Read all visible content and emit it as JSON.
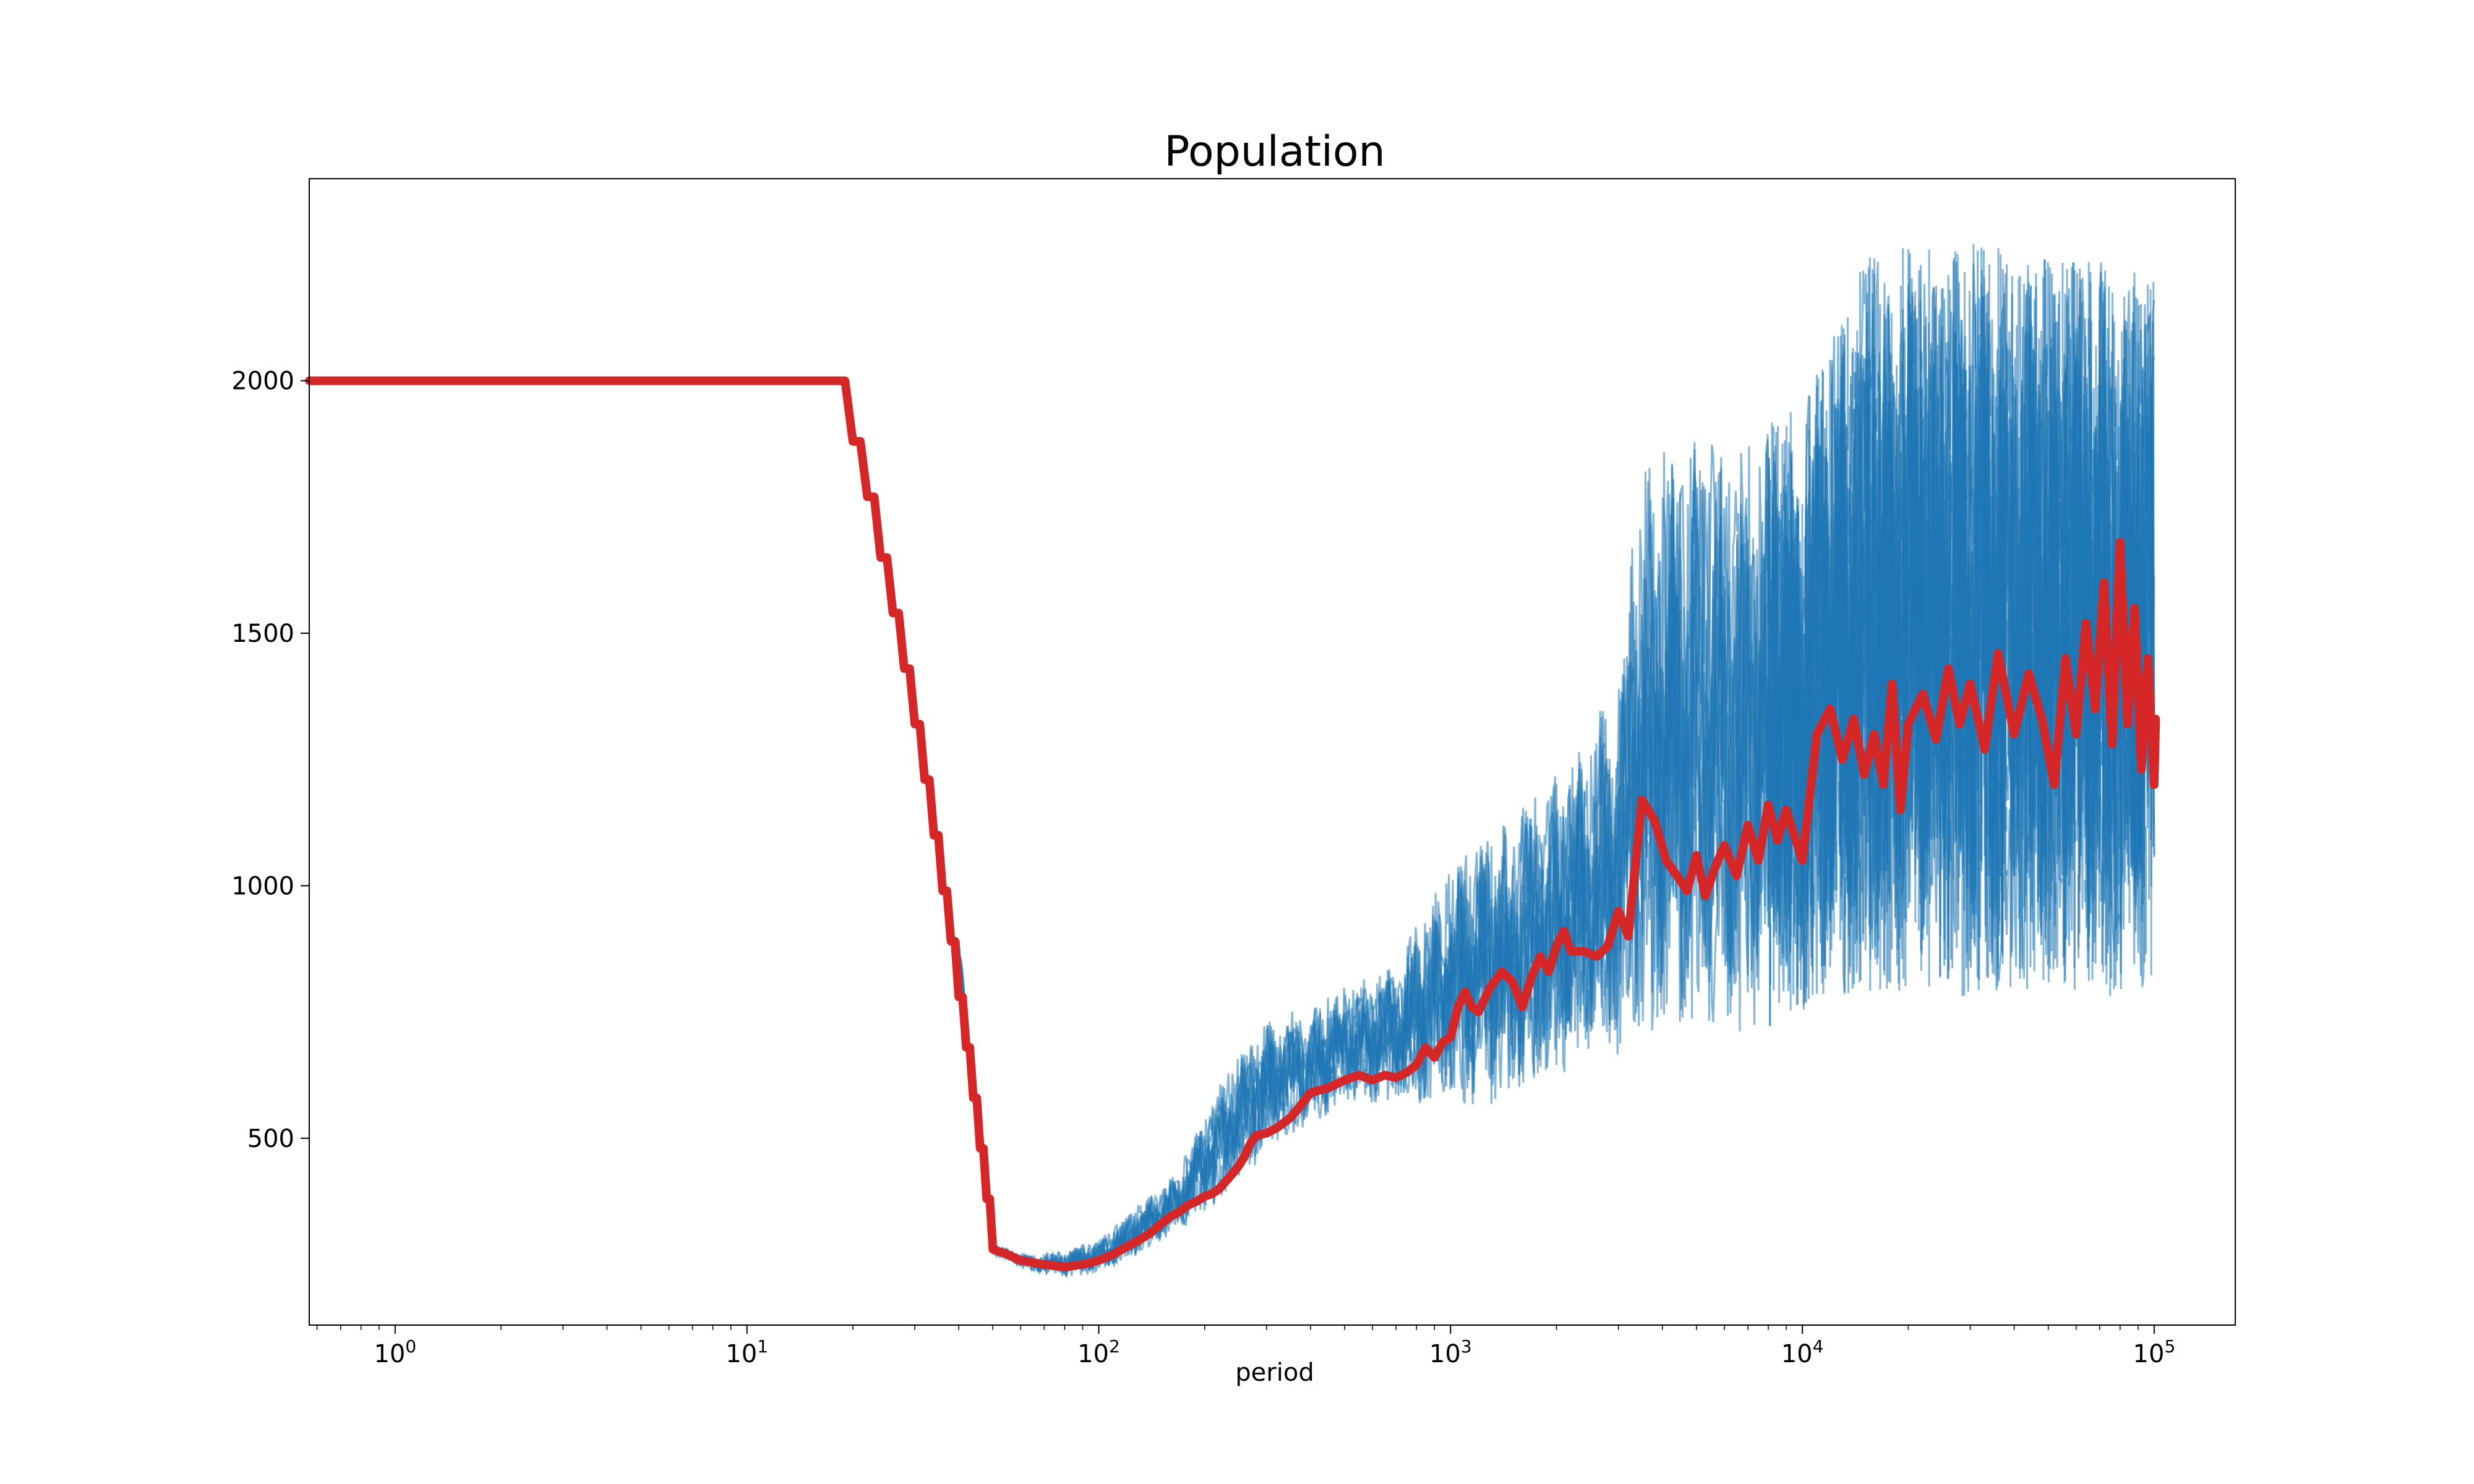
{
  "chart_data": {
    "type": "line",
    "title": "Population",
    "xlabel": "period",
    "ylabel": "",
    "xscale": "log",
    "xlim": [
      0.57,
      170000
    ],
    "ylim": [
      130,
      2400
    ],
    "grid": false,
    "legend": "none",
    "x_ticks": [
      {
        "value": 1,
        "base": "10",
        "exp": "0"
      },
      {
        "value": 10,
        "base": "10",
        "exp": "1"
      },
      {
        "value": 100,
        "base": "10",
        "exp": "2"
      },
      {
        "value": 1000,
        "base": "10",
        "exp": "3"
      },
      {
        "value": 10000,
        "base": "10",
        "exp": "4"
      },
      {
        "value": 100000,
        "base": "10",
        "exp": "5"
      }
    ],
    "y_ticks": [
      {
        "value": 500,
        "label": "500"
      },
      {
        "value": 1000,
        "label": "1000"
      },
      {
        "value": 1500,
        "label": "1500"
      },
      {
        "value": 2000,
        "label": "2000"
      }
    ],
    "colors": {
      "runs": "#1f77b4",
      "mean": "#d62728",
      "axes": "#000000"
    },
    "series": [
      {
        "role": "individual runs",
        "color": "#1f77b4",
        "envelope": {
          "x": [
            0.57,
            19,
            22,
            30,
            40,
            50,
            65,
            80,
            100,
            130,
            170,
            220,
            300,
            400,
            500,
            700,
            1000,
            1500,
            2000,
            3000,
            3500,
            5000,
            7000,
            10000,
            15000,
            20000,
            30000,
            50000,
            70000,
            100000
          ],
          "low": [
            2000,
            2000,
            1850,
            1300,
            830,
            270,
            235,
            225,
            230,
            270,
            320,
            370,
            470,
            530,
            560,
            570,
            560,
            560,
            620,
            660,
            680,
            690,
            700,
            750,
            780,
            790,
            780,
            800,
            780,
            780
          ],
          "high": [
            2000,
            2000,
            1900,
            1380,
            900,
            290,
            265,
            280,
            300,
            370,
            440,
            620,
            740,
            760,
            800,
            850,
            1050,
            1150,
            1230,
            1400,
            1870,
            1900,
            1900,
            1950,
            2250,
            2270,
            2280,
            2250,
            2250,
            2200
          ]
        }
      },
      {
        "role": "mean",
        "color": "#d62728",
        "points": [
          [
            0.57,
            2000
          ],
          [
            19,
            2000
          ],
          [
            20,
            1880
          ],
          [
            21,
            1880
          ],
          [
            22,
            1770
          ],
          [
            23,
            1770
          ],
          [
            24,
            1650
          ],
          [
            25,
            1650
          ],
          [
            26,
            1540
          ],
          [
            27,
            1540
          ],
          [
            28,
            1430
          ],
          [
            29,
            1430
          ],
          [
            30,
            1320
          ],
          [
            31,
            1320
          ],
          [
            32,
            1210
          ],
          [
            33,
            1210
          ],
          [
            34,
            1100
          ],
          [
            35,
            1100
          ],
          [
            36,
            990
          ],
          [
            37,
            990
          ],
          [
            38,
            890
          ],
          [
            39,
            890
          ],
          [
            40,
            780
          ],
          [
            41,
            780
          ],
          [
            42,
            680
          ],
          [
            43,
            680
          ],
          [
            44,
            580
          ],
          [
            45,
            580
          ],
          [
            46,
            480
          ],
          [
            47,
            480
          ],
          [
            48,
            380
          ],
          [
            49,
            380
          ],
          [
            50,
            280
          ],
          [
            55,
            270
          ],
          [
            60,
            258
          ],
          [
            70,
            250
          ],
          [
            80,
            245
          ],
          [
            90,
            250
          ],
          [
            100,
            258
          ],
          [
            110,
            270
          ],
          [
            120,
            285
          ],
          [
            130,
            298
          ],
          [
            140,
            312
          ],
          [
            150,
            330
          ],
          [
            160,
            345
          ],
          [
            170,
            355
          ],
          [
            180,
            368
          ],
          [
            190,
            375
          ],
          [
            200,
            385
          ],
          [
            210,
            390
          ],
          [
            220,
            400
          ],
          [
            230,
            415
          ],
          [
            240,
            430
          ],
          [
            250,
            445
          ],
          [
            260,
            465
          ],
          [
            270,
            490
          ],
          [
            280,
            505
          ],
          [
            300,
            510
          ],
          [
            320,
            520
          ],
          [
            350,
            540
          ],
          [
            380,
            570
          ],
          [
            400,
            590
          ],
          [
            450,
            600
          ],
          [
            500,
            615
          ],
          [
            550,
            625
          ],
          [
            600,
            615
          ],
          [
            650,
            625
          ],
          [
            700,
            620
          ],
          [
            750,
            630
          ],
          [
            800,
            645
          ],
          [
            850,
            680
          ],
          [
            900,
            660
          ],
          [
            950,
            690
          ],
          [
            1000,
            700
          ],
          [
            1050,
            760
          ],
          [
            1100,
            790
          ],
          [
            1150,
            760
          ],
          [
            1200,
            750
          ],
          [
            1300,
            800
          ],
          [
            1400,
            830
          ],
          [
            1500,
            810
          ],
          [
            1600,
            760
          ],
          [
            1700,
            820
          ],
          [
            1800,
            860
          ],
          [
            1900,
            830
          ],
          [
            2000,
            880
          ],
          [
            2100,
            910
          ],
          [
            2200,
            870
          ],
          [
            2400,
            870
          ],
          [
            2600,
            860
          ],
          [
            2800,
            880
          ],
          [
            3000,
            950
          ],
          [
            3200,
            900
          ],
          [
            3500,
            1170
          ],
          [
            3800,
            1130
          ],
          [
            4100,
            1050
          ],
          [
            4400,
            1020
          ],
          [
            4700,
            990
          ],
          [
            5000,
            1060
          ],
          [
            5300,
            980
          ],
          [
            5600,
            1030
          ],
          [
            6000,
            1080
          ],
          [
            6500,
            1020
          ],
          [
            7000,
            1120
          ],
          [
            7500,
            1050
          ],
          [
            8000,
            1160
          ],
          [
            8500,
            1090
          ],
          [
            9000,
            1150
          ],
          [
            10000,
            1050
          ],
          [
            11000,
            1300
          ],
          [
            12000,
            1350
          ],
          [
            13000,
            1250
          ],
          [
            14000,
            1330
          ],
          [
            15000,
            1220
          ],
          [
            16000,
            1300
          ],
          [
            17000,
            1200
          ],
          [
            18000,
            1400
          ],
          [
            19000,
            1150
          ],
          [
            20000,
            1320
          ],
          [
            22000,
            1380
          ],
          [
            24000,
            1290
          ],
          [
            26000,
            1430
          ],
          [
            28000,
            1320
          ],
          [
            30000,
            1400
          ],
          [
            33000,
            1270
          ],
          [
            36000,
            1460
          ],
          [
            40000,
            1300
          ],
          [
            44000,
            1420
          ],
          [
            48000,
            1330
          ],
          [
            52000,
            1200
          ],
          [
            56000,
            1450
          ],
          [
            60000,
            1300
          ],
          [
            64000,
            1520
          ],
          [
            68000,
            1350
          ],
          [
            72000,
            1600
          ],
          [
            76000,
            1280
          ],
          [
            80000,
            1680
          ],
          [
            84000,
            1320
          ],
          [
            88000,
            1550
          ],
          [
            92000,
            1230
          ],
          [
            96000,
            1450
          ],
          [
            100000,
            1200
          ],
          [
            101000,
            1330
          ]
        ]
      }
    ]
  }
}
